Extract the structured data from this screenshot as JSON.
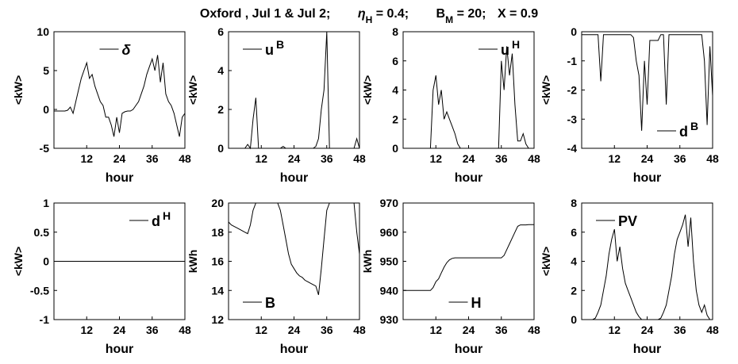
{
  "title": [
    "Oxford , Jul 1 & Jul 2;",
    "η",
    "H",
    "= 0.4;",
    "B",
    "M",
    "= 20;",
    "X = 0.9"
  ],
  "chart_data": [
    {
      "type": "line",
      "xlabel": "hour",
      "ylabel": "<kW>",
      "xlim": [
        0,
        48
      ],
      "xticks": [
        12,
        24,
        36,
        48
      ],
      "ylim": [
        -5,
        10
      ],
      "yticks": [
        -5,
        0,
        5,
        10
      ],
      "legend_loc": "upper center",
      "x": [
        0,
        1,
        2,
        3,
        4,
        5,
        6,
        7,
        8,
        9,
        10,
        11,
        12,
        13,
        14,
        15,
        16,
        17,
        18,
        19,
        20,
        21,
        22,
        23,
        24,
        25,
        26,
        27,
        28,
        29,
        30,
        31,
        32,
        33,
        34,
        35,
        36,
        37,
        38,
        39,
        40,
        41,
        42,
        43,
        44,
        45,
        46,
        47,
        48
      ],
      "series": [
        {
          "name": "δ",
          "color": "#000000",
          "values": [
            -0.2,
            -0.2,
            -0.2,
            -0.2,
            -0.2,
            -0.1,
            0.3,
            -0.5,
            1,
            2.5,
            4,
            5,
            6,
            4,
            4.5,
            3,
            2,
            1,
            0.5,
            -1,
            -1,
            -2,
            -3.5,
            -1,
            -3,
            -0.5,
            -0.3,
            -0.2,
            -0.2,
            0,
            0.5,
            1,
            2,
            3,
            4.5,
            5.5,
            6.5,
            5,
            7,
            3.5,
            6,
            2,
            1,
            0.5,
            -0.5,
            -2,
            -3.5,
            -1,
            -0.5
          ]
        }
      ]
    },
    {
      "type": "line",
      "xlabel": "hour",
      "ylabel": "<kW>",
      "xlim": [
        0,
        48
      ],
      "xticks": [
        12,
        24,
        36,
        48
      ],
      "ylim": [
        0,
        6
      ],
      "yticks": [
        0,
        2,
        4,
        6
      ],
      "legend_loc": "upper left",
      "x": [
        0,
        1,
        2,
        3,
        4,
        5,
        6,
        7,
        8,
        9,
        10,
        11,
        12,
        13,
        14,
        15,
        16,
        17,
        18,
        19,
        20,
        21,
        22,
        23,
        24,
        25,
        26,
        27,
        28,
        29,
        30,
        31,
        32,
        33,
        34,
        35,
        36,
        37,
        38,
        39,
        40,
        41,
        42,
        43,
        44,
        45,
        46,
        47,
        48
      ],
      "series": [
        {
          "name": "u",
          "name_sup": "B",
          "color": "#000000",
          "values": [
            0,
            0,
            0,
            0,
            0,
            0,
            0,
            0.2,
            0,
            1.5,
            2.6,
            0,
            0,
            0,
            0,
            0,
            0,
            0,
            0,
            0,
            0.1,
            0,
            0,
            0,
            0,
            0,
            0,
            0,
            0,
            0,
            0,
            0,
            0.1,
            0.5,
            2,
            3,
            6,
            0,
            0,
            0,
            0,
            0,
            0,
            0,
            0,
            0,
            0,
            0.5,
            0
          ]
        }
      ]
    },
    {
      "type": "line",
      "xlabel": "hour",
      "ylabel": "<kW>",
      "xlim": [
        0,
        48
      ],
      "xticks": [
        12,
        24,
        36,
        48
      ],
      "ylim": [
        0,
        8
      ],
      "yticks": [
        0,
        2,
        4,
        6,
        8
      ],
      "legend_loc": "upper right",
      "x": [
        0,
        1,
        2,
        3,
        4,
        5,
        6,
        7,
        8,
        9,
        10,
        11,
        12,
        13,
        14,
        15,
        16,
        17,
        18,
        19,
        20,
        21,
        22,
        23,
        24,
        25,
        26,
        27,
        28,
        29,
        30,
        31,
        32,
        33,
        34,
        35,
        36,
        37,
        38,
        39,
        40,
        41,
        42,
        43,
        44,
        45,
        46,
        47,
        48
      ],
      "series": [
        {
          "name": "u",
          "name_sup": "H",
          "color": "#000000",
          "values": [
            0,
            0,
            0,
            0,
            0,
            0,
            0,
            0,
            0,
            0,
            0,
            4,
            5,
            3,
            4,
            2,
            2.5,
            2,
            1.5,
            1,
            0.3,
            0,
            0,
            0,
            0,
            0,
            0,
            0,
            0,
            0,
            0,
            0,
            0,
            0,
            0,
            0,
            6,
            4,
            7,
            5,
            6.5,
            3,
            0.5,
            0.5,
            1,
            0.3,
            0,
            0,
            0
          ]
        }
      ]
    },
    {
      "type": "line",
      "xlabel": "hour",
      "ylabel": "<kW>",
      "xlim": [
        0,
        48
      ],
      "xticks": [
        12,
        24,
        36,
        48
      ],
      "ylim": [
        -4,
        0
      ],
      "yticks": [
        -4,
        -3,
        -2,
        -1,
        0
      ],
      "legend_loc": "lower right",
      "x": [
        0,
        1,
        2,
        3,
        4,
        5,
        6,
        7,
        8,
        9,
        10,
        11,
        12,
        13,
        14,
        15,
        16,
        17,
        18,
        19,
        20,
        21,
        22,
        23,
        24,
        25,
        26,
        27,
        28,
        29,
        30,
        31,
        32,
        33,
        34,
        35,
        36,
        37,
        38,
        39,
        40,
        41,
        42,
        43,
        44,
        45,
        46,
        47,
        48
      ],
      "series": [
        {
          "name": "d",
          "name_sup": "B",
          "color": "#000000",
          "values": [
            -0.1,
            -0.1,
            -0.1,
            -0.1,
            -0.1,
            -0.1,
            -0.1,
            -1.7,
            -0.1,
            -0.1,
            -0.1,
            -0.1,
            -0.1,
            -0.1,
            -0.1,
            -0.1,
            -0.1,
            -0.1,
            -0.1,
            -0.2,
            -1,
            -1.5,
            -3.4,
            -1,
            -2.5,
            -0.3,
            -0.3,
            -0.3,
            -0.3,
            -0.1,
            -0.1,
            -2.5,
            -0.1,
            -0.1,
            -0.1,
            -0.1,
            -0.1,
            -0.1,
            -0.1,
            -0.1,
            -0.1,
            -0.1,
            -0.1,
            -0.1,
            -0.1,
            -1,
            -3.2,
            -0.5,
            -2.2
          ]
        }
      ]
    },
    {
      "type": "line",
      "xlabel": "hour",
      "ylabel": "<kW>",
      "xlim": [
        0,
        48
      ],
      "xticks": [
        12,
        24,
        36,
        48
      ],
      "ylim": [
        -1,
        1
      ],
      "yticks": [
        -1,
        -0.5,
        0,
        0.5,
        1
      ],
      "legend_loc": "upper right",
      "x": [
        0,
        1,
        2,
        3,
        4,
        5,
        6,
        7,
        8,
        9,
        10,
        11,
        12,
        13,
        14,
        15,
        16,
        17,
        18,
        19,
        20,
        21,
        22,
        23,
        24,
        25,
        26,
        27,
        28,
        29,
        30,
        31,
        32,
        33,
        34,
        35,
        36,
        37,
        38,
        39,
        40,
        41,
        42,
        43,
        44,
        45,
        46,
        47,
        48
      ],
      "series": [
        {
          "name": "d",
          "name_sup": "H",
          "color": "#000000",
          "values": [
            0,
            0,
            0,
            0,
            0,
            0,
            0,
            0,
            0,
            0,
            0,
            0,
            0,
            0,
            0,
            0,
            0,
            0,
            0,
            0,
            0,
            0,
            0,
            0,
            0,
            0,
            0,
            0,
            0,
            0,
            0,
            0,
            0,
            0,
            0,
            0,
            0,
            0,
            0,
            0,
            0,
            0,
            0,
            0,
            0,
            0,
            0,
            0,
            0
          ]
        }
      ]
    },
    {
      "type": "line",
      "xlabel": "hour",
      "ylabel": "kWh",
      "xlim": [
        0,
        48
      ],
      "xticks": [
        12,
        24,
        36,
        48
      ],
      "ylim": [
        12,
        20
      ],
      "yticks": [
        12,
        14,
        16,
        18,
        20
      ],
      "legend_loc": "lower left",
      "x": [
        0,
        1,
        2,
        3,
        4,
        5,
        6,
        7,
        8,
        9,
        10,
        11,
        12,
        13,
        14,
        15,
        16,
        17,
        18,
        19,
        20,
        21,
        22,
        23,
        24,
        25,
        26,
        27,
        28,
        29,
        30,
        31,
        32,
        33,
        34,
        35,
        36,
        37,
        38,
        39,
        40,
        41,
        42,
        43,
        44,
        45,
        46,
        47,
        48
      ],
      "series": [
        {
          "name": "B",
          "color": "#000000",
          "values": [
            18.7,
            18.5,
            18.4,
            18.3,
            18.2,
            18.1,
            18,
            17.9,
            18.5,
            19.5,
            20,
            20,
            20,
            20,
            20,
            20,
            20,
            20,
            20,
            19.5,
            18.5,
            17.5,
            16.5,
            15.8,
            15.5,
            15.2,
            15,
            14.9,
            14.7,
            14.6,
            14.5,
            14.4,
            14.3,
            13.7,
            15.5,
            17.5,
            19.5,
            20,
            20,
            20,
            20,
            20,
            20,
            20,
            20,
            20,
            20,
            18,
            16.5
          ]
        }
      ]
    },
    {
      "type": "line",
      "xlabel": "hour",
      "ylabel": "kWh",
      "xlim": [
        0,
        48
      ],
      "xticks": [
        12,
        24,
        36,
        48
      ],
      "ylim": [
        930,
        970
      ],
      "yticks": [
        930,
        940,
        950,
        960,
        970
      ],
      "legend_loc": "lower center",
      "x": [
        0,
        1,
        2,
        3,
        4,
        5,
        6,
        7,
        8,
        9,
        10,
        11,
        12,
        13,
        14,
        15,
        16,
        17,
        18,
        19,
        20,
        21,
        22,
        23,
        24,
        25,
        26,
        27,
        28,
        29,
        30,
        31,
        32,
        33,
        34,
        35,
        36,
        37,
        38,
        39,
        40,
        41,
        42,
        43,
        44,
        45,
        46,
        47,
        48
      ],
      "series": [
        {
          "name": "H",
          "color": "#000000",
          "values": [
            940,
            940,
            940,
            940,
            940,
            940,
            940,
            940,
            940,
            940,
            940,
            941,
            943,
            944,
            946,
            948,
            949.5,
            950.5,
            951,
            951.2,
            951.2,
            951.2,
            951.2,
            951.2,
            951.2,
            951.2,
            951.2,
            951.2,
            951.2,
            951.2,
            951.2,
            951.2,
            951.2,
            951.2,
            951.2,
            951.2,
            951.2,
            952,
            954,
            956,
            958,
            960,
            962,
            962.5,
            962.5,
            962.5,
            962.6,
            962.6,
            962.6
          ]
        }
      ]
    },
    {
      "type": "line",
      "xlabel": "hour",
      "ylabel": "<kW>",
      "xlim": [
        0,
        48
      ],
      "xticks": [
        12,
        24,
        36,
        48
      ],
      "ylim": [
        0,
        8
      ],
      "yticks": [
        0,
        2,
        4,
        6,
        8
      ],
      "legend_loc": "upper left",
      "x": [
        0,
        1,
        2,
        3,
        4,
        5,
        6,
        7,
        8,
        9,
        10,
        11,
        12,
        13,
        14,
        15,
        16,
        17,
        18,
        19,
        20,
        21,
        22,
        23,
        24,
        25,
        26,
        27,
        28,
        29,
        30,
        31,
        32,
        33,
        34,
        35,
        36,
        37,
        38,
        39,
        40,
        41,
        42,
        43,
        44,
        45,
        46,
        47,
        48
      ],
      "series": [
        {
          "name": "PV",
          "color": "#000000",
          "values": [
            0,
            0,
            0,
            0,
            0,
            0.1,
            0.5,
            1,
            2,
            3,
            4.5,
            5.5,
            6.2,
            4,
            5,
            3.5,
            2.5,
            2,
            1.5,
            1,
            0.5,
            0.2,
            0,
            0,
            0,
            0,
            0,
            0,
            0,
            0.1,
            0.5,
            1,
            2,
            3,
            4.5,
            5.5,
            6,
            6.5,
            7.2,
            5,
            7,
            4,
            2,
            1,
            0.5,
            1,
            0.3,
            0,
            0
          ]
        }
      ]
    }
  ]
}
